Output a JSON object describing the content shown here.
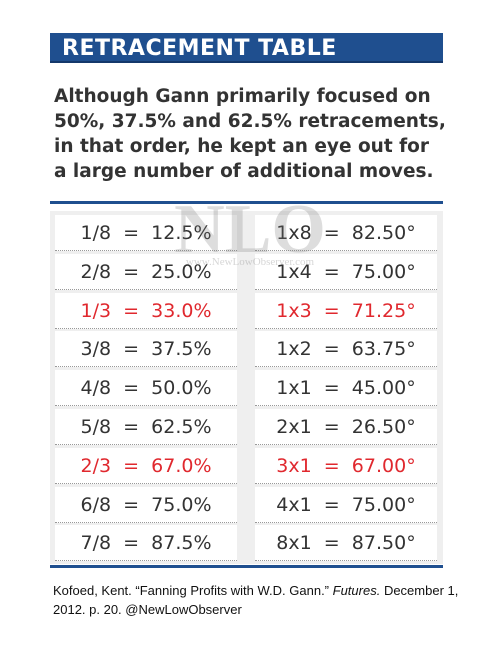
{
  "header": {
    "title": "RETRACEMENT TABLE"
  },
  "intro": "Although Gann primarily focused on 50%, 37.5% and 62.5% retracements, in that order, he kept an eye out for a large number of additional moves.",
  "watermark": {
    "logo": "NLO",
    "site": "www.NewLowObserver.com"
  },
  "table": {
    "highlight_color": "#e0282e",
    "rows": [
      {
        "left": "1/8  =  12.5%",
        "right": "1x8  =  82.50°",
        "highlight": false
      },
      {
        "left": "2/8  =  25.0%",
        "right": "1x4  =  75.00°",
        "highlight": false
      },
      {
        "left": "1/3  =  33.0%",
        "right": "1x3  =  71.25°",
        "highlight": true
      },
      {
        "left": "3/8  =  37.5%",
        "right": "1x2  =  63.75°",
        "highlight": false
      },
      {
        "left": "4/8  =  50.0%",
        "right": "1x1  =  45.00°",
        "highlight": false
      },
      {
        "left": "5/8  =  62.5%",
        "right": "2x1  =  26.50°",
        "highlight": false
      },
      {
        "left": "2/3  =  67.0%",
        "right": "3x1  =  67.00°",
        "highlight": true
      },
      {
        "left": "6/8  =  75.0%",
        "right": "4x1  =  75.00°",
        "highlight": false
      },
      {
        "left": "7/8  =  87.5%",
        "right": "8x1  =  87.50°",
        "highlight": false
      }
    ]
  },
  "citation": {
    "before": "Kofoed, Kent. “Fanning Profits with W.D. Gann.” ",
    "journal": "Futures.",
    "after": " December 1, 2012. p. 20. @NewLowObserver"
  }
}
